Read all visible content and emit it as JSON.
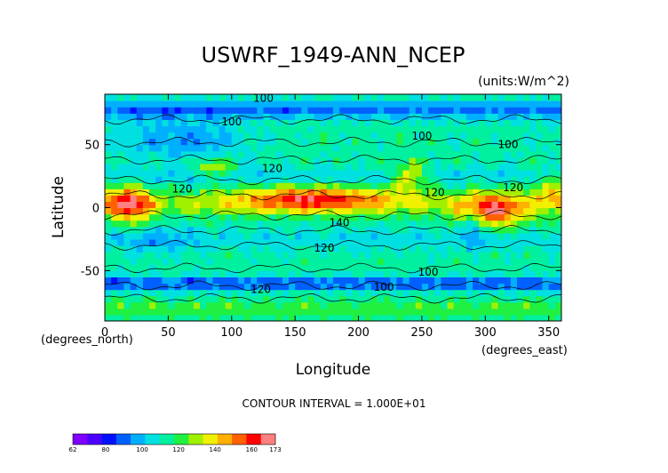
{
  "chart_data": {
    "type": "heatmap",
    "title": "USWRF_1949-ANN_NCEP",
    "units_label": "(units:W/m^2)",
    "xlabel": "Longitude",
    "ylabel": "Latitude",
    "x_unit_label": "(degrees_east)",
    "y_unit_label": "(degrees_north)",
    "xlim": [
      0,
      360
    ],
    "ylim": [
      -90,
      90
    ],
    "x_ticks": [
      0,
      50,
      100,
      150,
      200,
      250,
      300,
      350
    ],
    "y_ticks": [
      -50,
      0,
      50
    ],
    "contour_interval_text": "CONTOUR INTERVAL = 1.000E+01",
    "colorbar": {
      "min": 62,
      "max": 173,
      "tick_values": [
        62,
        80,
        100,
        120,
        140,
        160,
        173
      ],
      "colors": [
        "#7f00ff",
        "#4b00ff",
        "#0010ff",
        "#0060ff",
        "#00b0ff",
        "#00e0e0",
        "#00f0a0",
        "#20f040",
        "#a0f000",
        "#f0f000",
        "#ffb000",
        "#ff6000",
        "#ff0000",
        "#ff8080"
      ]
    },
    "contour_labels": [
      {
        "text": "100",
        "lon": 125,
        "lat": 87
      },
      {
        "text": "100",
        "lon": 100,
        "lat": 68
      },
      {
        "text": "100",
        "lon": 250,
        "lat": 57
      },
      {
        "text": "100",
        "lon": 318,
        "lat": 50
      },
      {
        "text": "120",
        "lon": 132,
        "lat": 31
      },
      {
        "text": "120",
        "lon": 61,
        "lat": 15
      },
      {
        "text": "120",
        "lon": 322,
        "lat": 16
      },
      {
        "text": "120",
        "lon": 260,
        "lat": 12
      },
      {
        "text": "140",
        "lon": 185,
        "lat": -12
      },
      {
        "text": "120",
        "lon": 173,
        "lat": -32
      },
      {
        "text": "100",
        "lon": 255,
        "lat": -51
      },
      {
        "text": "100",
        "lon": 220,
        "lat": -63
      },
      {
        "text": "120",
        "lon": 123,
        "lat": -65
      }
    ],
    "grid": false
  }
}
